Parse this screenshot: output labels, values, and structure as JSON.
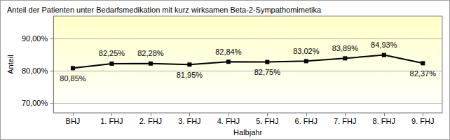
{
  "chart_data": {
    "type": "line",
    "title": "Anteil der Patienten unter Bedarfsmedikation mit kurz wirksamen Beta-2-Sympathomimetika",
    "x_label": "Halbjahr",
    "y_label": "Anteil",
    "categories": [
      "BHJ",
      "1. FHJ",
      "2. FHJ",
      "3. FHJ",
      "4. FHJ",
      "5. FHJ",
      "6. FHJ",
      "7. FHJ",
      "8. FHJ",
      "9. FHJ"
    ],
    "values": [
      80.85,
      82.25,
      82.28,
      81.95,
      82.84,
      82.75,
      83.02,
      83.89,
      84.93,
      82.37
    ],
    "value_labels": [
      "80,85%",
      "82,25%",
      "82,28%",
      "81,95%",
      "82,84%",
      "82,75%",
      "83,02%",
      "83,89%",
      "84,93%",
      "82,37%"
    ],
    "color": "#000000",
    "marker": "square",
    "ylim": [
      67,
      97
    ],
    "yticks": [
      {
        "value": 70,
        "label": "70,00%"
      },
      {
        "value": 80,
        "label": "80,00%"
      },
      {
        "value": 90,
        "label": "90,00%"
      }
    ],
    "grid": true,
    "data_labels": true
  }
}
